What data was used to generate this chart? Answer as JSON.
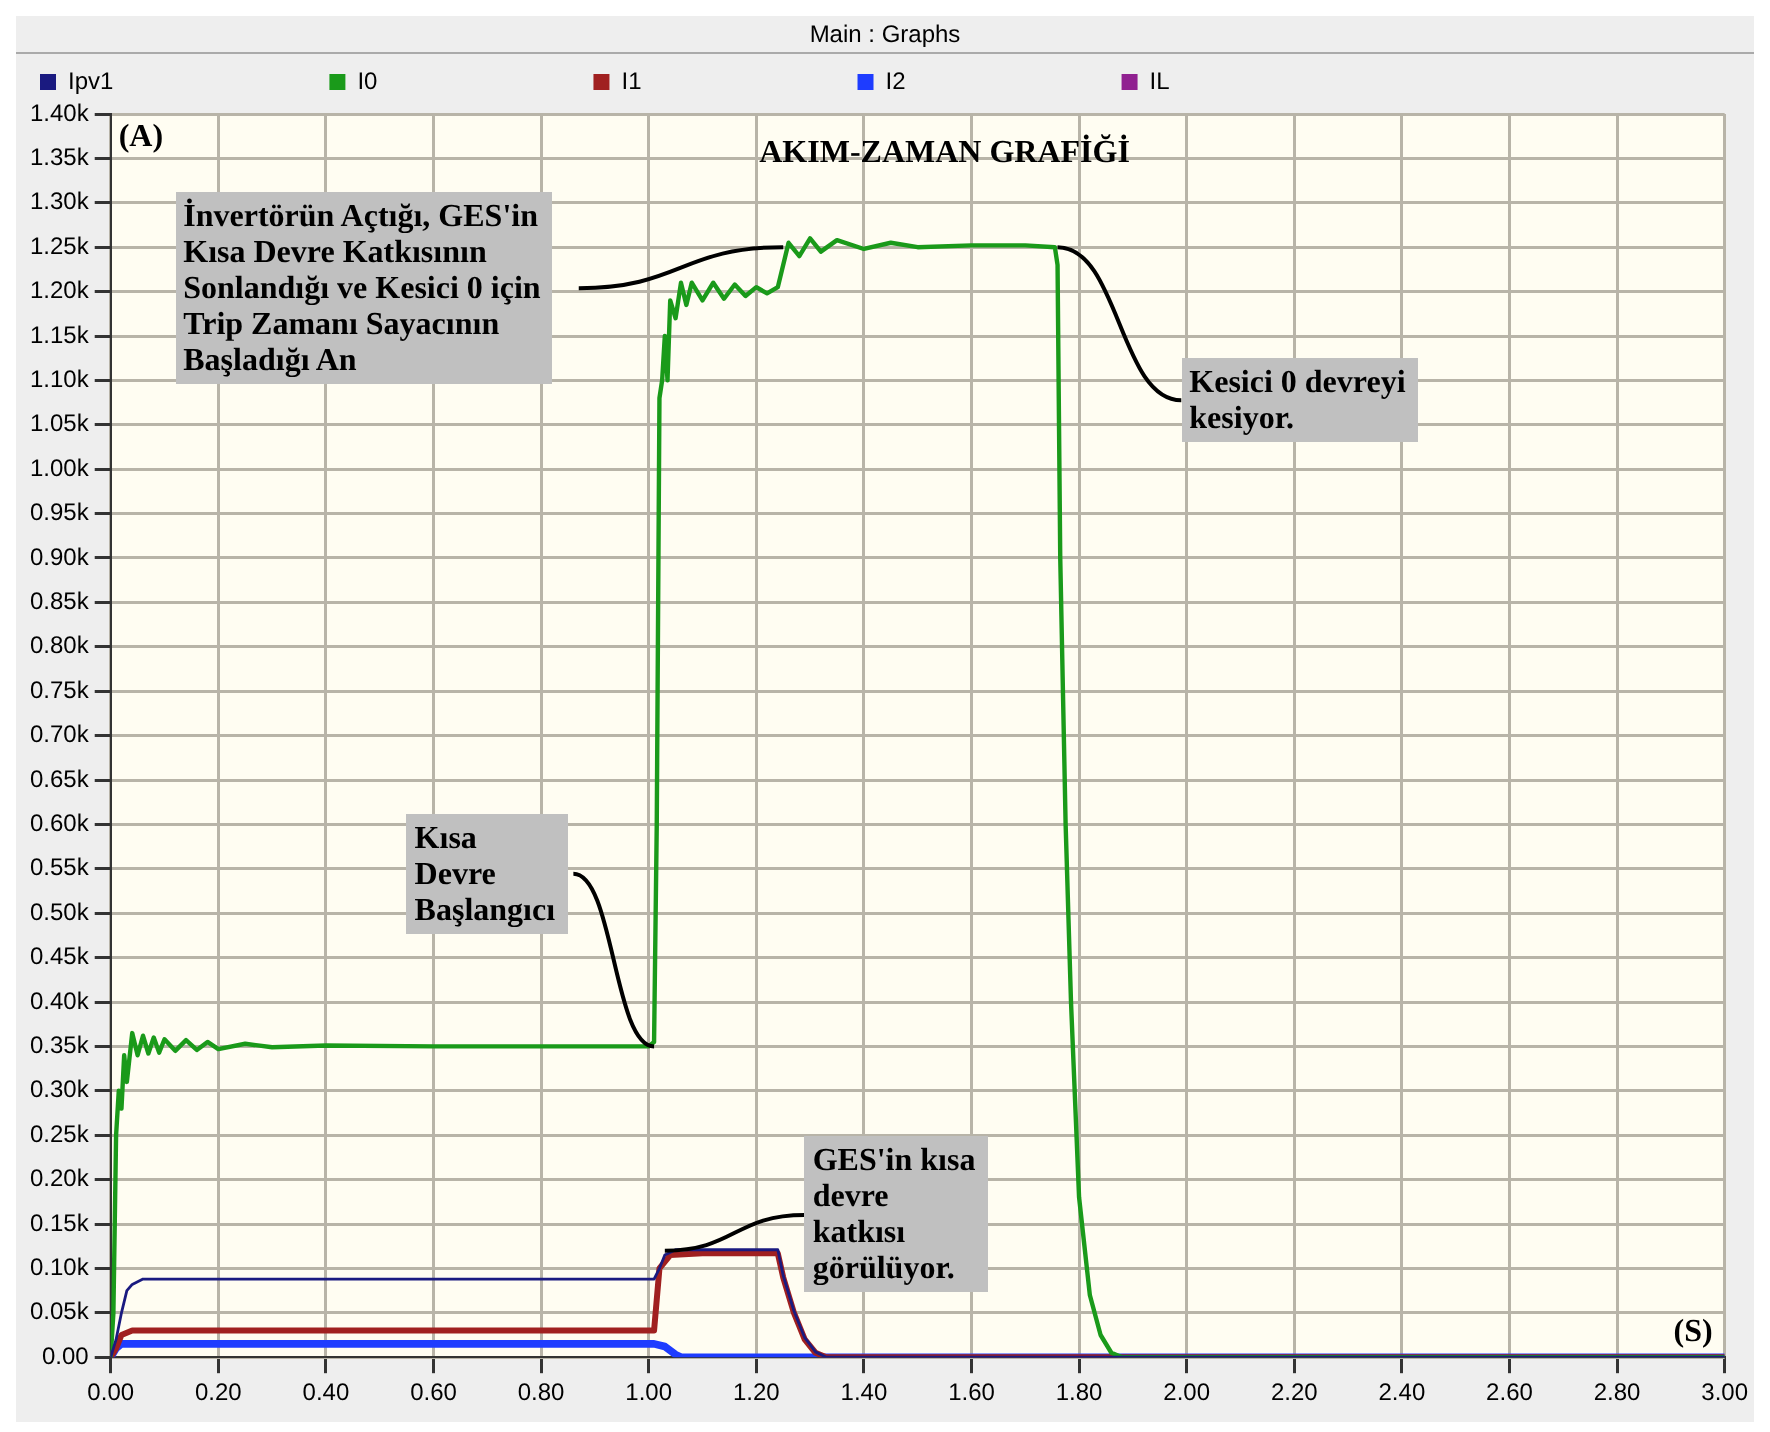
{
  "chart_data": {
    "type": "line",
    "title": "Main : Graphs",
    "subtitle": "AKIM-ZAMAN GRAFİĞİ",
    "xlabel": "(S)",
    "ylabel": "(A)",
    "legend": "top",
    "grid": true,
    "marker": "none",
    "line_style": "solid",
    "xlim": [
      0,
      3
    ],
    "ylim": [
      0,
      1400
    ],
    "xticks": [
      {
        "value": 0,
        "label": "0.00"
      },
      {
        "value": 0.2,
        "label": "0.20"
      },
      {
        "value": 0.4,
        "label": "0.40"
      },
      {
        "value": 0.6,
        "label": "0.60"
      },
      {
        "value": 0.8,
        "label": "0.80"
      },
      {
        "value": 1,
        "label": "1.00"
      },
      {
        "value": 1.2,
        "label": "1.20"
      },
      {
        "value": 1.4,
        "label": "1.40"
      },
      {
        "value": 1.6,
        "label": "1.60"
      },
      {
        "value": 1.8,
        "label": "1.80"
      },
      {
        "value": 2,
        "label": "2.00"
      },
      {
        "value": 2.2,
        "label": "2.20"
      },
      {
        "value": 2.4,
        "label": "2.40"
      },
      {
        "value": 2.6,
        "label": "2.60"
      },
      {
        "value": 2.8,
        "label": "2.80"
      },
      {
        "value": 3,
        "label": "3.00"
      }
    ],
    "yticks": [
      {
        "value": 0,
        "label": "0.00"
      },
      {
        "value": 50,
        "label": "0.05k"
      },
      {
        "value": 100,
        "label": "0.10k"
      },
      {
        "value": 150,
        "label": "0.15k"
      },
      {
        "value": 200,
        "label": "0.20k"
      },
      {
        "value": 250,
        "label": "0.25k"
      },
      {
        "value": 300,
        "label": "0.30k"
      },
      {
        "value": 350,
        "label": "0.35k"
      },
      {
        "value": 400,
        "label": "0.40k"
      },
      {
        "value": 450,
        "label": "0.45k"
      },
      {
        "value": 500,
        "label": "0.50k"
      },
      {
        "value": 550,
        "label": "0.55k"
      },
      {
        "value": 600,
        "label": "0.60k"
      },
      {
        "value": 650,
        "label": "0.65k"
      },
      {
        "value": 700,
        "label": "0.70k"
      },
      {
        "value": 750,
        "label": "0.75k"
      },
      {
        "value": 800,
        "label": "0.80k"
      },
      {
        "value": 850,
        "label": "0.85k"
      },
      {
        "value": 900,
        "label": "0.90k"
      },
      {
        "value": 950,
        "label": "0.95k"
      },
      {
        "value": 1000,
        "label": "1.00k"
      },
      {
        "value": 1050,
        "label": "1.05k"
      },
      {
        "value": 1100,
        "label": "1.10k"
      },
      {
        "value": 1150,
        "label": "1.15k"
      },
      {
        "value": 1200,
        "label": "1.20k"
      },
      {
        "value": 1250,
        "label": "1.25k"
      },
      {
        "value": 1300,
        "label": "1.30k"
      },
      {
        "value": 1350,
        "label": "1.35k"
      },
      {
        "value": 1400,
        "label": "1.40k"
      }
    ],
    "series": [
      {
        "name": "Ipv1",
        "color": "#1a1a80",
        "x": [
          0,
          0.01,
          0.02,
          0.03,
          0.04,
          0.06,
          1.01,
          1.02,
          1.03,
          1.05,
          1.24,
          1.25,
          1.27,
          1.29,
          1.31,
          1.33,
          3.0
        ],
        "values": [
          0,
          20,
          50,
          75,
          82,
          88,
          88,
          100,
          115,
          121,
          121,
          92,
          52,
          22,
          6,
          0,
          0
        ]
      },
      {
        "name": "I0",
        "color": "#1a9a1a",
        "x": [
          0,
          0.005,
          0.01,
          0.015,
          0.02,
          0.025,
          0.03,
          0.04,
          0.05,
          0.06,
          0.07,
          0.08,
          0.09,
          0.1,
          0.12,
          0.14,
          0.16,
          0.18,
          0.2,
          0.25,
          0.3,
          0.4,
          0.6,
          0.8,
          1.0,
          1.01,
          1.015,
          1.02,
          1.025,
          1.03,
          1.035,
          1.04,
          1.05,
          1.06,
          1.07,
          1.08,
          1.1,
          1.12,
          1.14,
          1.16,
          1.18,
          1.2,
          1.22,
          1.24,
          1.25,
          1.26,
          1.28,
          1.3,
          1.32,
          1.35,
          1.4,
          1.45,
          1.5,
          1.6,
          1.7,
          1.755,
          1.76,
          1.765,
          1.775,
          1.785,
          1.8,
          1.82,
          1.84,
          1.86,
          1.88,
          3.0
        ],
        "values": [
          0,
          50,
          250,
          300,
          280,
          340,
          310,
          365,
          340,
          362,
          342,
          360,
          343,
          358,
          345,
          357,
          346,
          355,
          347,
          353,
          349,
          351,
          350,
          350,
          350,
          355,
          600,
          1080,
          1100,
          1150,
          1100,
          1190,
          1170,
          1210,
          1185,
          1210,
          1190,
          1210,
          1192,
          1208,
          1195,
          1205,
          1198,
          1205,
          1230,
          1255,
          1240,
          1260,
          1245,
          1258,
          1248,
          1255,
          1250,
          1252,
          1252,
          1250,
          1230,
          900,
          600,
          400,
          180,
          70,
          25,
          5,
          0,
          0
        ]
      },
      {
        "name": "I1",
        "color": "#a02020",
        "x": [
          0,
          0.01,
          0.02,
          0.04,
          1.01,
          1.02,
          1.04,
          1.1,
          1.24,
          1.25,
          1.27,
          1.29,
          1.31,
          1.33,
          3.0
        ],
        "values": [
          0,
          10,
          25,
          30,
          30,
          100,
          115,
          117,
          117,
          90,
          50,
          20,
          5,
          0,
          0
        ]
      },
      {
        "name": "I2",
        "color": "#1e3cff",
        "x": [
          0,
          0.01,
          0.02,
          1.01,
          1.03,
          1.05,
          1.06,
          3.0
        ],
        "values": [
          0,
          10,
          15,
          15,
          12,
          3,
          0,
          0
        ]
      },
      {
        "name": "IL",
        "color": "#902090"
      }
    ],
    "annotations": [
      {
        "text": "Kısa Devre Başlangıcı",
        "x": 1.01,
        "y": 350
      },
      {
        "text": "İnvertörün Açtığı, GES'in Kısa Devre Katkısının Sonlandığı ve Kesici 0 için Trip Zamanı Sayacının Başladığı An",
        "x": 1.25,
        "y": 1250
      },
      {
        "text": "Kesici 0 devreyi kesiyor.",
        "x": 1.76,
        "y": 1250
      },
      {
        "text": "GES'in kısa devre katkısı görülüyor.",
        "x": 1.03,
        "y": 120
      }
    ]
  }
}
